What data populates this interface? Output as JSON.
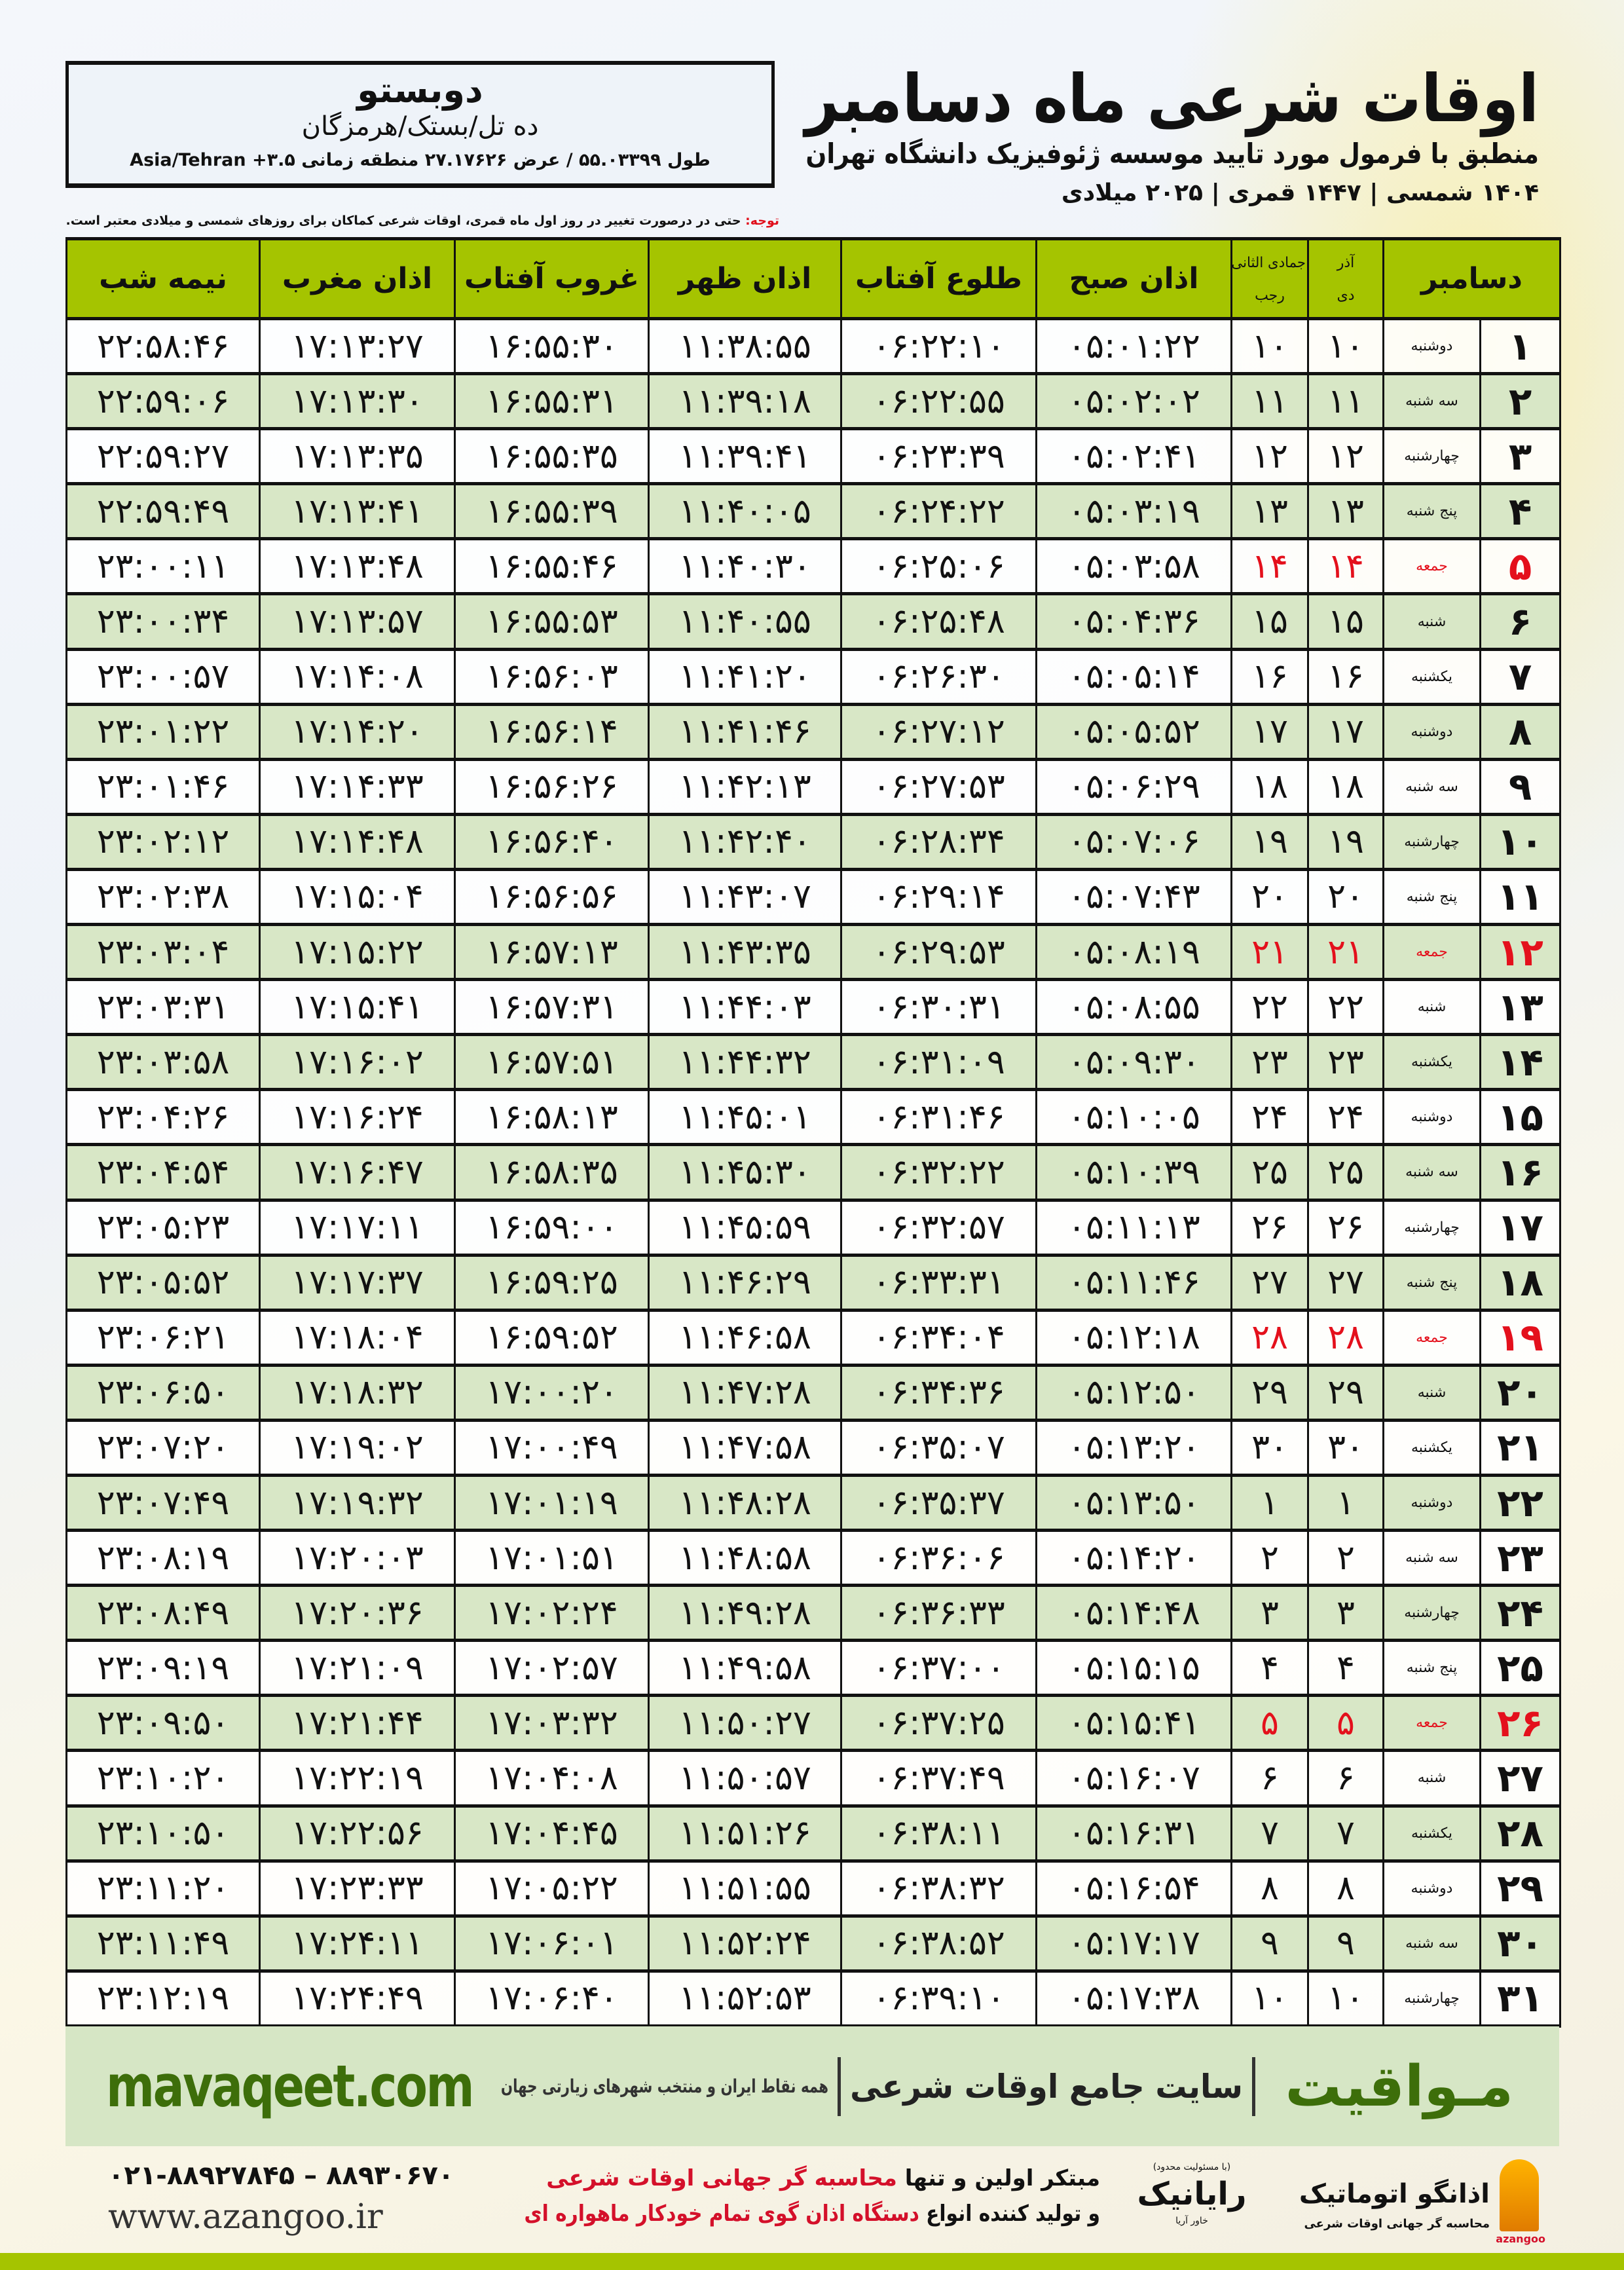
{
  "header": {
    "title": "اوقات شرعی ماه دسامبر",
    "subtitle": "منطبق با فرمول مورد تایید موسسه ژئوفیزیک دانشگاه تهران",
    "dates": "۱۴۰۴ شمسی | ۱۴۴۷ قمری | ۲۰۲۵ میلادی"
  },
  "location": {
    "city": "دوبستو",
    "region": "ده تل/بستک/هرمزگان",
    "coords": "طول ۵۵.۰۳۳۹۹ / عرض ۲۷.۱۷۶۲۶ منطقه زمانی ۳.۵+ Asia/Tehran"
  },
  "note": {
    "label": "توجه:",
    "text": " حتی در درصورت تغییر در روز اول ماه قمری، اوقات شرعی کماکان برای روزهای شمسی و میلادی معتبر است."
  },
  "colors": {
    "header_green": "#a5c400",
    "row_alt": "#d8e7c6",
    "holiday_red": "#e4101c",
    "brand_green": "#3d6e0a"
  },
  "columns": {
    "month": "دسامبر",
    "solar_top": "آذر",
    "solar_bottom": "دی",
    "lunar_top": "جمادی الثانی",
    "lunar_bottom": "رجب",
    "fajr": "اذان صبح",
    "sunrise": "طلوع آفتاب",
    "dhuhr": "اذان ظهر",
    "sunset": "غروب آفتاب",
    "maghrib": "اذان مغرب",
    "midnight": "نیمه شب"
  },
  "rows": [
    {
      "d": "۱",
      "w": "دوشنبه",
      "s": "۱۰",
      "l": "۱۰",
      "t": [
        "۰۵:۰۱:۲۲",
        "۰۶:۲۲:۱۰",
        "۱۱:۳۸:۵۵",
        "۱۶:۵۵:۳۰",
        "۱۷:۱۳:۲۷",
        "۲۲:۵۸:۴۶"
      ]
    },
    {
      "d": "۲",
      "w": "سه شنبه",
      "s": "۱۱",
      "l": "۱۱",
      "t": [
        "۰۵:۰۲:۰۲",
        "۰۶:۲۲:۵۵",
        "۱۱:۳۹:۱۸",
        "۱۶:۵۵:۳۱",
        "۱۷:۱۳:۳۰",
        "۲۲:۵۹:۰۶"
      ]
    },
    {
      "d": "۳",
      "w": "چهارشنبه",
      "s": "۱۲",
      "l": "۱۲",
      "t": [
        "۰۵:۰۲:۴۱",
        "۰۶:۲۳:۳۹",
        "۱۱:۳۹:۴۱",
        "۱۶:۵۵:۳۵",
        "۱۷:۱۳:۳۵",
        "۲۲:۵۹:۲۷"
      ]
    },
    {
      "d": "۴",
      "w": "پنج شنبه",
      "s": "۱۳",
      "l": "۱۳",
      "t": [
        "۰۵:۰۳:۱۹",
        "۰۶:۲۴:۲۲",
        "۱۱:۴۰:۰۵",
        "۱۶:۵۵:۳۹",
        "۱۷:۱۳:۴۱",
        "۲۲:۵۹:۴۹"
      ]
    },
    {
      "d": "۵",
      "w": "جمعه",
      "s": "۱۴",
      "l": "۱۴",
      "h": true,
      "t": [
        "۰۵:۰۳:۵۸",
        "۰۶:۲۵:۰۶",
        "۱۱:۴۰:۳۰",
        "۱۶:۵۵:۴۶",
        "۱۷:۱۳:۴۸",
        "۲۳:۰۰:۱۱"
      ]
    },
    {
      "d": "۶",
      "w": "شنبه",
      "s": "۱۵",
      "l": "۱۵",
      "t": [
        "۰۵:۰۴:۳۶",
        "۰۶:۲۵:۴۸",
        "۱۱:۴۰:۵۵",
        "۱۶:۵۵:۵۳",
        "۱۷:۱۳:۵۷",
        "۲۳:۰۰:۳۴"
      ]
    },
    {
      "d": "۷",
      "w": "یکشنبه",
      "s": "۱۶",
      "l": "۱۶",
      "t": [
        "۰۵:۰۵:۱۴",
        "۰۶:۲۶:۳۰",
        "۱۱:۴۱:۲۰",
        "۱۶:۵۶:۰۳",
        "۱۷:۱۴:۰۸",
        "۲۳:۰۰:۵۷"
      ]
    },
    {
      "d": "۸",
      "w": "دوشنبه",
      "s": "۱۷",
      "l": "۱۷",
      "t": [
        "۰۵:۰۵:۵۲",
        "۰۶:۲۷:۱۲",
        "۱۱:۴۱:۴۶",
        "۱۶:۵۶:۱۴",
        "۱۷:۱۴:۲۰",
        "۲۳:۰۱:۲۲"
      ]
    },
    {
      "d": "۹",
      "w": "سه شنبه",
      "s": "۱۸",
      "l": "۱۸",
      "t": [
        "۰۵:۰۶:۲۹",
        "۰۶:۲۷:۵۳",
        "۱۱:۴۲:۱۳",
        "۱۶:۵۶:۲۶",
        "۱۷:۱۴:۳۳",
        "۲۳:۰۱:۴۶"
      ]
    },
    {
      "d": "۱۰",
      "w": "چهارشنبه",
      "s": "۱۹",
      "l": "۱۹",
      "t": [
        "۰۵:۰۷:۰۶",
        "۰۶:۲۸:۳۴",
        "۱۱:۴۲:۴۰",
        "۱۶:۵۶:۴۰",
        "۱۷:۱۴:۴۸",
        "۲۳:۰۲:۱۲"
      ]
    },
    {
      "d": "۱۱",
      "w": "پنج شنبه",
      "s": "۲۰",
      "l": "۲۰",
      "t": [
        "۰۵:۰۷:۴۳",
        "۰۶:۲۹:۱۴",
        "۱۱:۴۳:۰۷",
        "۱۶:۵۶:۵۶",
        "۱۷:۱۵:۰۴",
        "۲۳:۰۲:۳۸"
      ]
    },
    {
      "d": "۱۲",
      "w": "جمعه",
      "s": "۲۱",
      "l": "۲۱",
      "h": true,
      "t": [
        "۰۵:۰۸:۱۹",
        "۰۶:۲۹:۵۳",
        "۱۱:۴۳:۳۵",
        "۱۶:۵۷:۱۳",
        "۱۷:۱۵:۲۲",
        "۲۳:۰۳:۰۴"
      ]
    },
    {
      "d": "۱۳",
      "w": "شنبه",
      "s": "۲۲",
      "l": "۲۲",
      "t": [
        "۰۵:۰۸:۵۵",
        "۰۶:۳۰:۳۱",
        "۱۱:۴۴:۰۳",
        "۱۶:۵۷:۳۱",
        "۱۷:۱۵:۴۱",
        "۲۳:۰۳:۳۱"
      ]
    },
    {
      "d": "۱۴",
      "w": "یکشنبه",
      "s": "۲۳",
      "l": "۲۳",
      "t": [
        "۰۵:۰۹:۳۰",
        "۰۶:۳۱:۰۹",
        "۱۱:۴۴:۳۲",
        "۱۶:۵۷:۵۱",
        "۱۷:۱۶:۰۲",
        "۲۳:۰۳:۵۸"
      ]
    },
    {
      "d": "۱۵",
      "w": "دوشنبه",
      "s": "۲۴",
      "l": "۲۴",
      "t": [
        "۰۵:۱۰:۰۵",
        "۰۶:۳۱:۴۶",
        "۱۱:۴۵:۰۱",
        "۱۶:۵۸:۱۳",
        "۱۷:۱۶:۲۴",
        "۲۳:۰۴:۲۶"
      ]
    },
    {
      "d": "۱۶",
      "w": "سه شنبه",
      "s": "۲۵",
      "l": "۲۵",
      "t": [
        "۰۵:۱۰:۳۹",
        "۰۶:۳۲:۲۲",
        "۱۱:۴۵:۳۰",
        "۱۶:۵۸:۳۵",
        "۱۷:۱۶:۴۷",
        "۲۳:۰۴:۵۴"
      ]
    },
    {
      "d": "۱۷",
      "w": "چهارشنبه",
      "s": "۲۶",
      "l": "۲۶",
      "t": [
        "۰۵:۱۱:۱۳",
        "۰۶:۳۲:۵۷",
        "۱۱:۴۵:۵۹",
        "۱۶:۵۹:۰۰",
        "۱۷:۱۷:۱۱",
        "۲۳:۰۵:۲۳"
      ]
    },
    {
      "d": "۱۸",
      "w": "پنج شنبه",
      "s": "۲۷",
      "l": "۲۷",
      "t": [
        "۰۵:۱۱:۴۶",
        "۰۶:۳۳:۳۱",
        "۱۱:۴۶:۲۹",
        "۱۶:۵۹:۲۵",
        "۱۷:۱۷:۳۷",
        "۲۳:۰۵:۵۲"
      ]
    },
    {
      "d": "۱۹",
      "w": "جمعه",
      "s": "۲۸",
      "l": "۲۸",
      "h": true,
      "t": [
        "۰۵:۱۲:۱۸",
        "۰۶:۳۴:۰۴",
        "۱۱:۴۶:۵۸",
        "۱۶:۵۹:۵۲",
        "۱۷:۱۸:۰۴",
        "۲۳:۰۶:۲۱"
      ]
    },
    {
      "d": "۲۰",
      "w": "شنبه",
      "s": "۲۹",
      "l": "۲۹",
      "t": [
        "۰۵:۱۲:۵۰",
        "۰۶:۳۴:۳۶",
        "۱۱:۴۷:۲۸",
        "۱۷:۰۰:۲۰",
        "۱۷:۱۸:۳۲",
        "۲۳:۰۶:۵۰"
      ]
    },
    {
      "d": "۲۱",
      "w": "یکشنبه",
      "s": "۳۰",
      "l": "۳۰",
      "t": [
        "۰۵:۱۳:۲۰",
        "۰۶:۳۵:۰۷",
        "۱۱:۴۷:۵۸",
        "۱۷:۰۰:۴۹",
        "۱۷:۱۹:۰۲",
        "۲۳:۰۷:۲۰"
      ]
    },
    {
      "d": "۲۲",
      "w": "دوشنبه",
      "s": "۱",
      "l": "۱",
      "t": [
        "۰۵:۱۳:۵۰",
        "۰۶:۳۵:۳۷",
        "۱۱:۴۸:۲۸",
        "۱۷:۰۱:۱۹",
        "۱۷:۱۹:۳۲",
        "۲۳:۰۷:۴۹"
      ]
    },
    {
      "d": "۲۳",
      "w": "سه شنبه",
      "s": "۲",
      "l": "۲",
      "t": [
        "۰۵:۱۴:۲۰",
        "۰۶:۳۶:۰۶",
        "۱۱:۴۸:۵۸",
        "۱۷:۰۱:۵۱",
        "۱۷:۲۰:۰۳",
        "۲۳:۰۸:۱۹"
      ]
    },
    {
      "d": "۲۴",
      "w": "چهارشنبه",
      "s": "۳",
      "l": "۳",
      "t": [
        "۰۵:۱۴:۴۸",
        "۰۶:۳۶:۳۳",
        "۱۱:۴۹:۲۸",
        "۱۷:۰۲:۲۴",
        "۱۷:۲۰:۳۶",
        "۲۳:۰۸:۴۹"
      ]
    },
    {
      "d": "۲۵",
      "w": "پنج شنبه",
      "s": "۴",
      "l": "۴",
      "t": [
        "۰۵:۱۵:۱۵",
        "۰۶:۳۷:۰۰",
        "۱۱:۴۹:۵۸",
        "۱۷:۰۲:۵۷",
        "۱۷:۲۱:۰۹",
        "۲۳:۰۹:۱۹"
      ]
    },
    {
      "d": "۲۶",
      "w": "جمعه",
      "s": "۵",
      "l": "۵",
      "h": true,
      "t": [
        "۰۵:۱۵:۴۱",
        "۰۶:۳۷:۲۵",
        "۱۱:۵۰:۲۷",
        "۱۷:۰۳:۳۲",
        "۱۷:۲۱:۴۴",
        "۲۳:۰۹:۵۰"
      ]
    },
    {
      "d": "۲۷",
      "w": "شنبه",
      "s": "۶",
      "l": "۶",
      "t": [
        "۰۵:۱۶:۰۷",
        "۰۶:۳۷:۴۹",
        "۱۱:۵۰:۵۷",
        "۱۷:۰۴:۰۸",
        "۱۷:۲۲:۱۹",
        "۲۳:۱۰:۲۰"
      ]
    },
    {
      "d": "۲۸",
      "w": "یکشنبه",
      "s": "۷",
      "l": "۷",
      "t": [
        "۰۵:۱۶:۳۱",
        "۰۶:۳۸:۱۱",
        "۱۱:۵۱:۲۶",
        "۱۷:۰۴:۴۵",
        "۱۷:۲۲:۵۶",
        "۲۳:۱۰:۵۰"
      ]
    },
    {
      "d": "۲۹",
      "w": "دوشنبه",
      "s": "۸",
      "l": "۸",
      "t": [
        "۰۵:۱۶:۵۴",
        "۰۶:۳۸:۳۲",
        "۱۱:۵۱:۵۵",
        "۱۷:۰۵:۲۲",
        "۱۷:۲۳:۳۳",
        "۲۳:۱۱:۲۰"
      ]
    },
    {
      "d": "۳۰",
      "w": "سه شنبه",
      "s": "۹",
      "l": "۹",
      "t": [
        "۰۵:۱۷:۱۷",
        "۰۶:۳۸:۵۲",
        "۱۱:۵۲:۲۴",
        "۱۷:۰۶:۰۱",
        "۱۷:۲۴:۱۱",
        "۲۳:۱۱:۴۹"
      ]
    },
    {
      "d": "۳۱",
      "w": "چهارشنبه",
      "s": "۱۰",
      "l": "۱۰",
      "t": [
        "۰۵:۱۷:۳۸",
        "۰۶:۳۹:۱۰",
        "۱۱:۵۲:۵۳",
        "۱۷:۰۶:۴۰",
        "۱۷:۲۴:۴۹",
        "۲۳:۱۲:۱۹"
      ]
    }
  ],
  "banner": {
    "brand": "مـواقیت",
    "slogan_main": "سایت جامع اوقات شرعی",
    "slogan_sub": "همه نقاط ایران و منتخب شهرهای زیارتی جهان",
    "site": "mavaqeet.com"
  },
  "footer": {
    "phone": "۰۲۱-۸۸۹۲۷۸۴۵ – ۸۸۹۳۰۶۷۰",
    "website": "www.azangoo.ir",
    "ad_line1_a": "مبتکر اولین و تنها ",
    "ad_line1_b": "محاسبه گر جهانی اوقات شرعی",
    "ad_line2_a": "و تولید کننده انواع ",
    "ad_line2_b": "دستگاه اذان گوی تمام خودکار ماهواره ای",
    "logo_rayanik": "رایانیک",
    "logo_rayanik_sub": "خاور آریا",
    "logo_rayanik_note": "(با مسئولیت محدود)",
    "logo_azangoo": "اذانگو اتوماتیک",
    "logo_azangoo_sub": "محاسبه گر جهانی اوقات شرعی",
    "logo_azangoo_en": "azangoo"
  }
}
